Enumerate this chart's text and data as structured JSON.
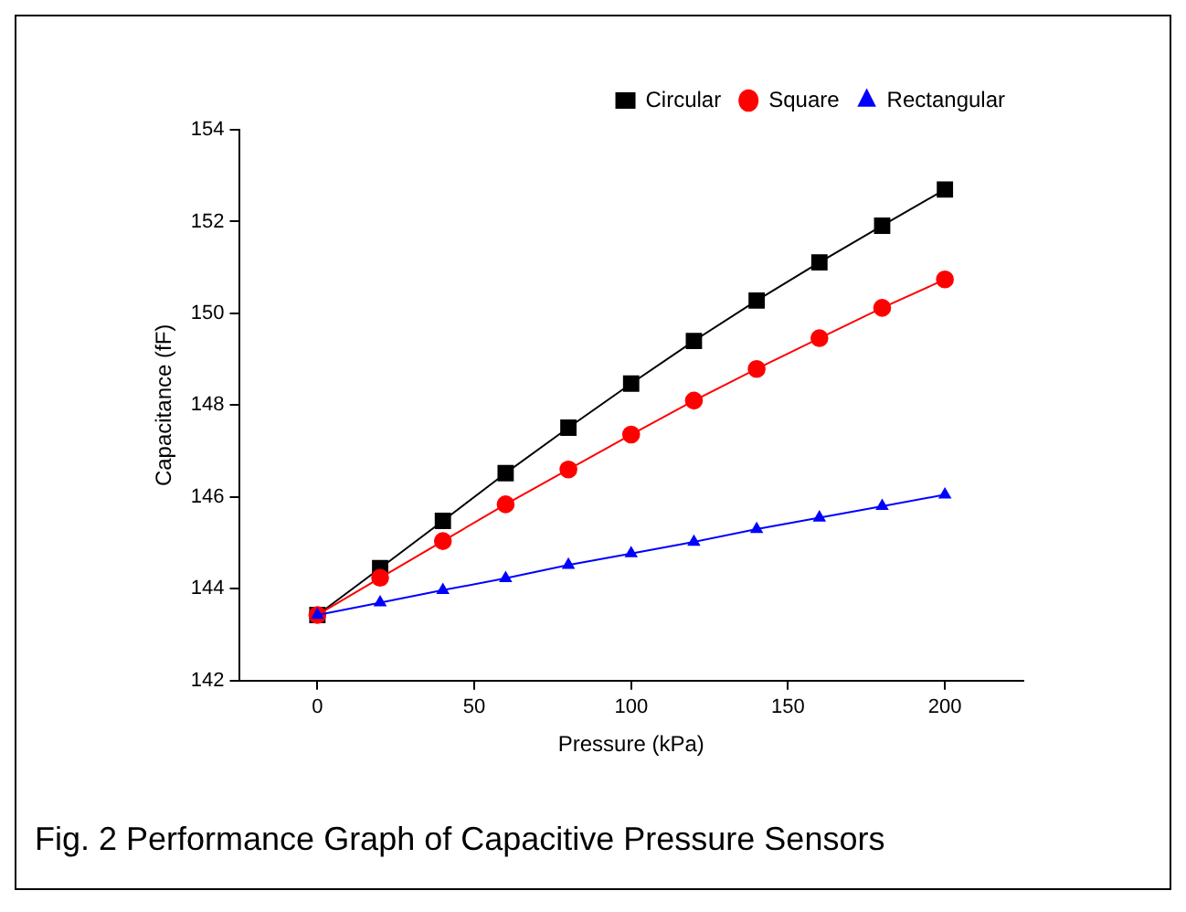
{
  "chart_data": {
    "type": "line",
    "xlabel": "Pressure (kPa)",
    "ylabel": "Capacitance (fF)",
    "annotations": [
      "Fig. 2 Performance Graph of Capacitive Pressure Sensors"
    ],
    "x": [
      0,
      20,
      40,
      60,
      80,
      100,
      120,
      140,
      160,
      180,
      200
    ],
    "series": [
      {
        "name": "Circular",
        "color": "#000000",
        "marker": "square",
        "values": [
          143.43,
          144.45,
          145.48,
          146.52,
          147.51,
          148.47,
          149.4,
          150.28,
          151.11,
          151.91,
          152.7
        ]
      },
      {
        "name": "Square",
        "color": "#ff0000",
        "marker": "circle",
        "values": [
          143.43,
          144.24,
          145.04,
          145.84,
          146.6,
          147.36,
          148.1,
          148.79,
          149.46,
          150.12,
          150.74
        ]
      },
      {
        "name": "Rectangular",
        "color": "#0000ff",
        "marker": "triangle",
        "values": [
          143.43,
          143.7,
          143.97,
          144.23,
          144.52,
          144.77,
          145.02,
          145.3,
          145.55,
          145.8,
          146.05
        ]
      }
    ],
    "xlim": [
      -25,
      225
    ],
    "xticks": [
      0,
      50,
      100,
      150,
      200
    ],
    "ylim": [
      142,
      154
    ],
    "yticks": [
      142,
      144,
      146,
      148,
      150,
      152,
      154
    ],
    "grid": false,
    "legend": "top right",
    "line_style": "solid"
  }
}
